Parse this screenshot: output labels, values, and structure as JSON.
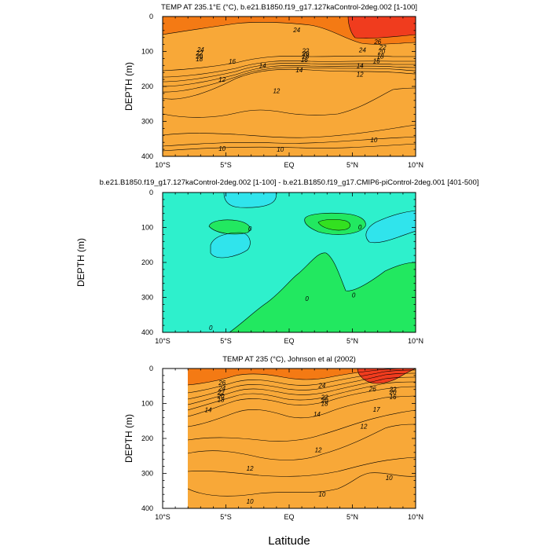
{
  "figure": {
    "xlabel": "Latitude"
  },
  "chart_data": [
    {
      "type": "contour",
      "title": "TEMP AT 235.1°E (°C), b.e21.B1850.f19_g17.127kaControl-2deg.002 [1-100]",
      "ylabel": "DEPTH (m)",
      "xlabel": "",
      "x_ticks": [
        "10°S",
        "5°S",
        "EQ",
        "5°N",
        "10°N"
      ],
      "y_ticks": [
        "0",
        "100",
        "200",
        "300",
        "400"
      ],
      "xlim": [
        -10,
        10
      ],
      "ylim": [
        400,
        0
      ],
      "contour_labels": [
        {
          "text": "24",
          "lat": 0.6,
          "depth": 38
        },
        {
          "text": "26",
          "lat": 7.0,
          "depth": 72
        },
        {
          "text": "24",
          "lat": 5.8,
          "depth": 95
        },
        {
          "text": "22",
          "lat": 7.4,
          "depth": 88
        },
        {
          "text": "20",
          "lat": 7.3,
          "depth": 100
        },
        {
          "text": "18",
          "lat": 7.2,
          "depth": 113
        },
        {
          "text": "16",
          "lat": 6.9,
          "depth": 127
        },
        {
          "text": "14",
          "lat": 5.6,
          "depth": 141
        },
        {
          "text": "12",
          "lat": 5.6,
          "depth": 165
        },
        {
          "text": "24",
          "lat": -7.0,
          "depth": 94
        },
        {
          "text": "22",
          "lat": -7.1,
          "depth": 104
        },
        {
          "text": "20",
          "lat": -7.1,
          "depth": 113
        },
        {
          "text": "18",
          "lat": -7.1,
          "depth": 121
        },
        {
          "text": "22",
          "lat": 1.3,
          "depth": 98
        },
        {
          "text": "20",
          "lat": 1.3,
          "depth": 106
        },
        {
          "text": "18",
          "lat": 1.3,
          "depth": 114
        },
        {
          "text": "16",
          "lat": 1.2,
          "depth": 124
        },
        {
          "text": "16",
          "lat": -4.5,
          "depth": 128
        },
        {
          "text": "14",
          "lat": -2.1,
          "depth": 140
        },
        {
          "text": "14",
          "lat": 0.8,
          "depth": 153
        },
        {
          "text": "12",
          "lat": -5.3,
          "depth": 180
        },
        {
          "text": "12",
          "lat": -1.0,
          "depth": 212
        },
        {
          "text": "10",
          "lat": -5.3,
          "depth": 378
        },
        {
          "text": "10",
          "lat": -0.7,
          "depth": 380
        },
        {
          "text": "10",
          "lat": 6.7,
          "depth": 353
        }
      ]
    },
    {
      "type": "contour",
      "title": "b.e21.B1850.f19_g17.127kaControl-2deg.002 [1-100] - b.e21.B1850.f19_g17.CMIP6-piControl-2deg.001 [401-500]",
      "ylabel": "DEPTH (m)",
      "xlabel": "",
      "x_ticks": [
        "10°S",
        "5°S",
        "EQ",
        "5°N",
        "10°N"
      ],
      "y_ticks": [
        "0",
        "100",
        "200",
        "300",
        "400"
      ],
      "xlim": [
        -10,
        10
      ],
      "ylim": [
        400,
        0
      ],
      "contour_labels": [
        {
          "text": "0",
          "lat": -3.1,
          "depth": 103
        },
        {
          "text": "0",
          "lat": 5.6,
          "depth": 99
        },
        {
          "text": "0",
          "lat": 1.4,
          "depth": 303
        },
        {
          "text": "0",
          "lat": 5.1,
          "depth": 293
        },
        {
          "text": "0",
          "lat": -6.2,
          "depth": 386
        }
      ]
    },
    {
      "type": "contour",
      "title": "TEMP AT 235 (°C), Johnson et al (2002)",
      "ylabel": "DEPTH (m)",
      "xlabel": "Latitude",
      "x_ticks": [
        "10°S",
        "5°S",
        "EQ",
        "5°N",
        "10°N"
      ],
      "y_ticks": [
        "0",
        "100",
        "200",
        "300",
        "400"
      ],
      "xlim": [
        -10,
        10
      ],
      "ylim": [
        400,
        0
      ],
      "contour_labels": [
        {
          "text": "26",
          "lat": -5.3,
          "depth": 40
        },
        {
          "text": "24",
          "lat": -5.3,
          "depth": 56
        },
        {
          "text": "22",
          "lat": -5.4,
          "depth": 69
        },
        {
          "text": "20",
          "lat": -5.4,
          "depth": 79
        },
        {
          "text": "18",
          "lat": -5.4,
          "depth": 89
        },
        {
          "text": "14",
          "lat": -6.4,
          "depth": 118
        },
        {
          "text": "24",
          "lat": 2.6,
          "depth": 48
        },
        {
          "text": "22",
          "lat": 2.8,
          "depth": 82
        },
        {
          "text": "20",
          "lat": 2.8,
          "depth": 91
        },
        {
          "text": "18",
          "lat": 2.8,
          "depth": 100
        },
        {
          "text": "14",
          "lat": 2.2,
          "depth": 130
        },
        {
          "text": "26",
          "lat": 6.6,
          "depth": 58
        },
        {
          "text": "22",
          "lat": 8.2,
          "depth": 59
        },
        {
          "text": "20",
          "lat": 8.2,
          "depth": 67
        },
        {
          "text": "16",
          "lat": 8.2,
          "depth": 81
        },
        {
          "text": "17",
          "lat": 6.9,
          "depth": 117
        },
        {
          "text": "12",
          "lat": 5.9,
          "depth": 165
        },
        {
          "text": "12",
          "lat": 2.3,
          "depth": 233
        },
        {
          "text": "12",
          "lat": -3.1,
          "depth": 285
        },
        {
          "text": "10",
          "lat": -3.1,
          "depth": 380
        },
        {
          "text": "10",
          "lat": 2.6,
          "depth": 360
        },
        {
          "text": "10",
          "lat": 7.9,
          "depth": 312
        }
      ]
    }
  ],
  "colors": {
    "c_lt10": "#0d55e8",
    "c_10_12": "#1e90ff",
    "c_12_14": "#10b0f8",
    "c_14_16": "#3ce0ea",
    "c_16_18": "#18d8c0",
    "c_18_20": "#20d888",
    "c_20_22": "#8cdc48",
    "c_22_24": "#e8e030",
    "c_24_26": "#f8d070",
    "c_26_28": "#f8a838",
    "c_gt28": "#f47a14",
    "c_hot": "#f03c1e",
    "diff_bg": "#2ef0cc",
    "diff_pos": "#22e860",
    "diff_pos_core": "#33e020",
    "diff_neg": "#30e4ec"
  }
}
